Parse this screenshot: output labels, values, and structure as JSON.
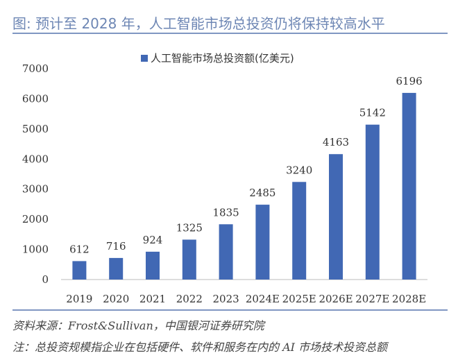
{
  "header": {
    "title": "图: 预计至 2028 年，人工智能市场总投资仍将保持较高水平"
  },
  "footer": {
    "source": "资料来源：Frost&Sullivan，中国银河证券研究院",
    "note": "注：总投资规模指企业在包括硬件、软件和服务在内的 AI 市场技术投资总额"
  },
  "chart_data": {
    "type": "bar",
    "categories": [
      "2019",
      "2020",
      "2021",
      "2022",
      "2023",
      "2024E",
      "2025E",
      "2026E",
      "2027E",
      "2028E"
    ],
    "series": [
      {
        "name": "人工智能市场总投资额(亿美元)",
        "values": [
          612,
          716,
          924,
          1325,
          1835,
          2485,
          3240,
          4163,
          5142,
          6196
        ],
        "color": "#4168b4"
      }
    ],
    "ylim": [
      0,
      7000
    ],
    "yticks": [
      0,
      1000,
      2000,
      3000,
      4000,
      5000,
      6000,
      7000
    ],
    "grid": false,
    "legend": "top",
    "data_labels": true
  }
}
